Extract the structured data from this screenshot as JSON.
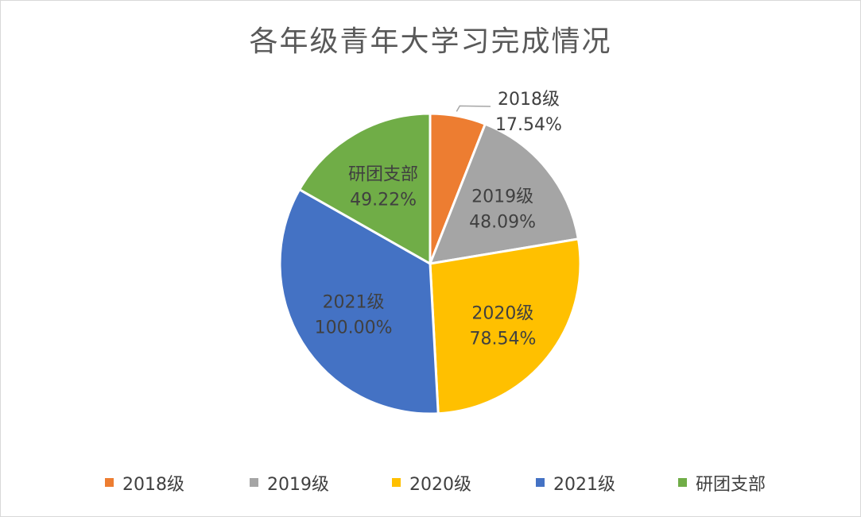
{
  "chart_data": {
    "type": "pie",
    "title": "各年级青年大学习完成情况",
    "categories": [
      "2018级",
      "2019级",
      "2020级",
      "2021级",
      "研团支部"
    ],
    "values": [
      17.54,
      48.09,
      78.54,
      100.0,
      49.22
    ],
    "labels": [
      "17.54%",
      "48.09%",
      "78.54%",
      "100.00%",
      "49.22%"
    ],
    "colors": [
      "#ED7D31",
      "#A5A5A5",
      "#FFC000",
      "#4472C4",
      "#70AD47"
    ],
    "legend_position": "bottom"
  }
}
